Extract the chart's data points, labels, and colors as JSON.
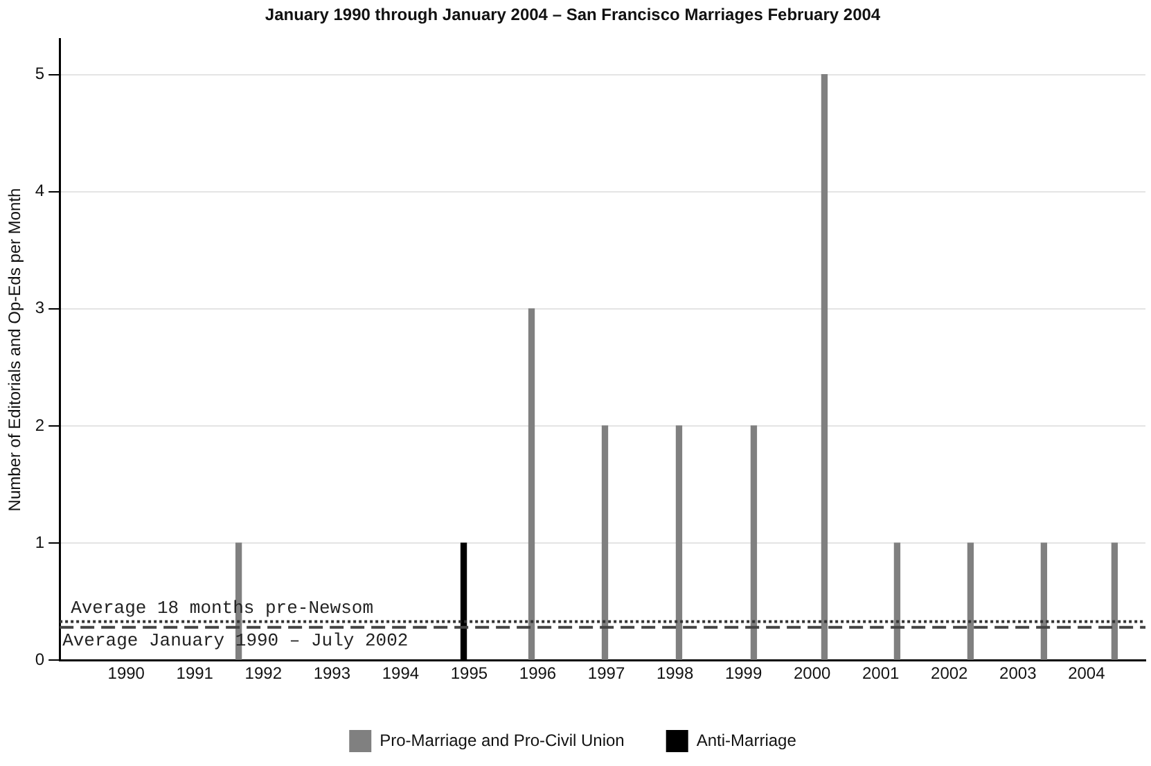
{
  "chart_data": {
    "type": "bar",
    "title": "January 1990 through January 2004 – San Francisco Marriages February 2004",
    "ylabel": "Number of Editorials and Op-Eds per Month",
    "series": [
      {
        "name": "Pro-Marriage and Pro-Civil Union",
        "color": "#808080",
        "x": [
          1991.68,
          1995.95,
          1997.02,
          1998.1,
          1999.19,
          2000.22,
          2001.28,
          2002.35,
          2003.42,
          2004.45
        ],
        "values": [
          1,
          3,
          2,
          2,
          2,
          5,
          1,
          1,
          1,
          1
        ]
      },
      {
        "name": "Anti-Marriage",
        "color": "#000000",
        "x": [
          1994.88
        ],
        "values": [
          1
        ]
      }
    ],
    "xlim": [
      1989.03,
      2004.86
    ],
    "xticks": [
      1990,
      1991,
      1992,
      1993,
      1994,
      1995,
      1996,
      1997,
      1998,
      1999,
      2000,
      2001,
      2002,
      2003,
      2004
    ],
    "ylim": [
      0,
      5.3
    ],
    "yticks": [
      0,
      1,
      2,
      3,
      4,
      5
    ],
    "grid": "y",
    "legend": "bottom",
    "ref_lines": [
      {
        "axis": "y",
        "value": 0.33,
        "label": "Average 18 months pre-Newsom",
        "line_style": "dotted",
        "color": "#333333"
      },
      {
        "axis": "y",
        "value": 0.28,
        "label": "Average January 1990 – July 2002",
        "line_style": "dashed",
        "color": "#444444"
      }
    ]
  }
}
